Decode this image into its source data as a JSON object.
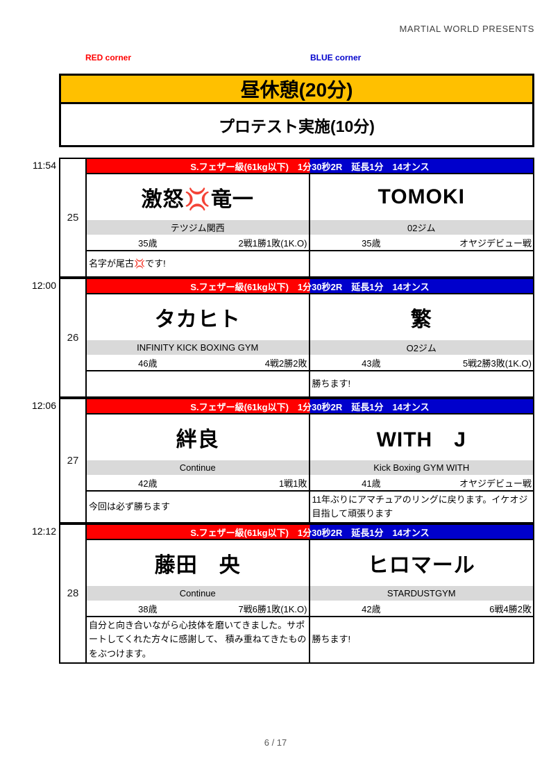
{
  "header": {
    "presents": "MARTIAL WORLD PRESENTS"
  },
  "corners": {
    "red_label": "RED corner",
    "blue_label": "BLUE corner"
  },
  "banners": {
    "lunch": "昼休憩(20分)",
    "protest": "プロテスト実施(10分)"
  },
  "colors": {
    "red_corner": "#ff0000",
    "blue_corner": "#0000cc",
    "lunch_banner": "#ffc000",
    "gym_bar": "#d9d9d9",
    "border": "#000000"
  },
  "fights": [
    {
      "time": "11:54",
      "number": "25",
      "division": "S.フェザー級(61kg以下)　1分30秒2R　延長1分　14オンス",
      "red": {
        "name": "激怒💢竜一",
        "gym": "テツジム関西",
        "age": "35歳",
        "record": "2戦1勝1敗(1K.O)",
        "comment": "名字が尾古💢です!"
      },
      "blue": {
        "name": "TOMOKI",
        "gym": "02ジム",
        "age": "35歳",
        "record": "オヤジデビュー戦",
        "comment": ""
      }
    },
    {
      "time": "12:00",
      "number": "26",
      "division": "S.フェザー級(61kg以下)　1分30秒2R　延長1分　14オンス",
      "red": {
        "name": "タカヒト",
        "gym": "INFINITY KICK BOXING GYM",
        "age": "46歳",
        "record": "4戦2勝2敗",
        "comment": ""
      },
      "blue": {
        "name": "繁",
        "gym": "O2ジム",
        "age": "43歳",
        "record": "5戦2勝3敗(1K.O)",
        "comment": "勝ちます!"
      }
    },
    {
      "time": "12:06",
      "number": "27",
      "division": "S.フェザー級(61kg以下)　1分30秒2R　延長1分　14オンス",
      "red": {
        "name": "絆良",
        "gym": "Continue",
        "age": "42歳",
        "record": "1戦1敗",
        "comment": "今回は必ず勝ちます"
      },
      "blue": {
        "name": "WITH　J",
        "gym": "Kick Boxing GYM WITH",
        "age": "41歳",
        "record": "オヤジデビュー戦",
        "comment": "11年ぶりにアマチュアのリングに戻ります。イケオジ目指して頑張ります"
      }
    },
    {
      "time": "12:12",
      "number": "28",
      "division": "S.フェザー級(61kg以下)　1分30秒2R　延長1分　14オンス",
      "red": {
        "name": "藤田　央",
        "gym": "Continue",
        "age": "38歳",
        "record": "7戦6勝1敗(1K.O)",
        "comment": "自分と向き合いながら心技体を磨いてきました。サポートしてくれた方々に感謝して、 積み重ねてきたものをぶつけます。"
      },
      "blue": {
        "name": "ヒロマール",
        "gym": "STARDUSTGYM",
        "age": "42歳",
        "record": "6戦4勝2敗",
        "comment": "勝ちます!"
      }
    }
  ],
  "footer": {
    "page": "6 / 17"
  }
}
